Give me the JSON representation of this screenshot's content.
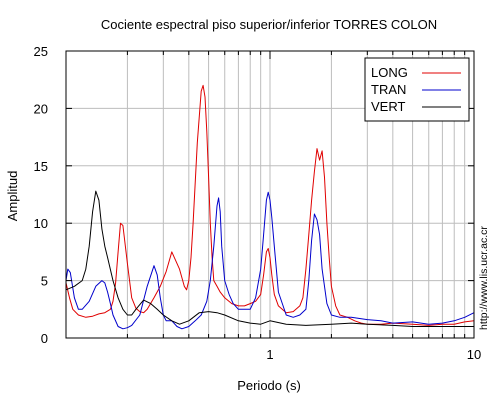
{
  "chart_data": {
    "type": "line",
    "title": "Cociente espectral piso superior/inferior  TORRES COLON",
    "xlabel": "Periodo (s)",
    "ylabel": "Amplitud",
    "x_scale": "log",
    "xlim": [
      0.1,
      10
    ],
    "ylim": [
      0,
      25
    ],
    "x_tick_labels": [
      "1",
      "10"
    ],
    "y_tick_labels": [
      "0",
      "5",
      "10",
      "15",
      "20",
      "25"
    ],
    "y_ticks": [
      0,
      5,
      10,
      15,
      20,
      25
    ],
    "grid": true,
    "legend_position": "top-right",
    "series": [
      {
        "name": "LONG",
        "color": "#e00000",
        "x": [
          0.1,
          0.104,
          0.108,
          0.115,
          0.125,
          0.135,
          0.145,
          0.155,
          0.165,
          0.17,
          0.175,
          0.18,
          0.185,
          0.19,
          0.2,
          0.21,
          0.22,
          0.23,
          0.24,
          0.25,
          0.27,
          0.29,
          0.31,
          0.33,
          0.36,
          0.38,
          0.39,
          0.4,
          0.41,
          0.42,
          0.44,
          0.46,
          0.47,
          0.48,
          0.49,
          0.5,
          0.51,
          0.52,
          0.53,
          0.55,
          0.57,
          0.6,
          0.65,
          0.7,
          0.75,
          0.8,
          0.85,
          0.9,
          0.93,
          0.96,
          0.98,
          1.0,
          1.02,
          1.05,
          1.1,
          1.2,
          1.3,
          1.4,
          1.45,
          1.5,
          1.55,
          1.6,
          1.65,
          1.7,
          1.75,
          1.8,
          1.85,
          1.9,
          1.95,
          2.0,
          2.1,
          2.2,
          2.4,
          2.6,
          2.8,
          3.0,
          3.5,
          4.0,
          5.0,
          6.0,
          7.0,
          8.0,
          9.0,
          10.0
        ],
        "y": [
          4.8,
          3.5,
          2.5,
          2.0,
          1.8,
          1.9,
          2.1,
          2.2,
          2.5,
          3.2,
          4.8,
          7.5,
          10.0,
          9.8,
          6.5,
          3.5,
          2.6,
          2.3,
          2.2,
          2.5,
          3.5,
          4.5,
          5.8,
          7.5,
          6.0,
          4.5,
          4.2,
          5.0,
          7.0,
          10.0,
          17.0,
          21.5,
          22.0,
          21.0,
          18.0,
          14.0,
          10.0,
          7.0,
          5.0,
          4.5,
          4.0,
          3.5,
          3.0,
          2.8,
          2.8,
          3.0,
          3.2,
          3.8,
          5.5,
          7.5,
          7.8,
          7.0,
          5.5,
          3.8,
          2.8,
          2.2,
          2.3,
          2.8,
          3.5,
          6.0,
          9.0,
          12.0,
          14.5,
          16.5,
          15.5,
          16.3,
          14.0,
          10.0,
          7.0,
          4.5,
          2.8,
          2.0,
          1.8,
          1.5,
          1.3,
          1.2,
          1.2,
          1.3,
          1.2,
          1.1,
          1.2,
          1.2,
          1.4,
          1.5
        ]
      },
      {
        "name": "TRAN",
        "color": "#0000cc",
        "x": [
          0.1,
          0.102,
          0.105,
          0.11,
          0.115,
          0.12,
          0.13,
          0.14,
          0.15,
          0.155,
          0.16,
          0.165,
          0.17,
          0.18,
          0.19,
          0.2,
          0.21,
          0.23,
          0.25,
          0.27,
          0.28,
          0.29,
          0.3,
          0.31,
          0.33,
          0.35,
          0.37,
          0.4,
          0.43,
          0.46,
          0.49,
          0.51,
          0.53,
          0.55,
          0.56,
          0.57,
          0.58,
          0.6,
          0.63,
          0.66,
          0.7,
          0.75,
          0.8,
          0.85,
          0.9,
          0.93,
          0.96,
          0.98,
          1.0,
          1.02,
          1.05,
          1.1,
          1.2,
          1.3,
          1.4,
          1.5,
          1.55,
          1.6,
          1.65,
          1.7,
          1.75,
          1.8,
          1.9,
          2.0,
          2.2,
          2.5,
          3.0,
          3.5,
          4.0,
          5.0,
          6.0,
          7.0,
          8.0,
          9.0,
          10.0
        ],
        "y": [
          5.0,
          6.0,
          5.7,
          3.5,
          2.5,
          2.5,
          3.2,
          4.5,
          5.0,
          4.8,
          4.0,
          3.0,
          2.0,
          1.0,
          0.8,
          0.9,
          1.1,
          2.0,
          4.5,
          6.3,
          5.5,
          3.5,
          2.0,
          1.5,
          1.5,
          1.0,
          0.8,
          1.0,
          1.5,
          2.0,
          3.2,
          5.0,
          8.0,
          11.5,
          12.2,
          11.0,
          8.0,
          5.0,
          3.8,
          3.0,
          2.5,
          2.5,
          2.5,
          3.5,
          6.0,
          9.0,
          12.0,
          12.7,
          12.0,
          10.5,
          8.0,
          4.0,
          2.0,
          1.8,
          2.0,
          2.5,
          5.0,
          8.5,
          10.8,
          10.3,
          9.0,
          6.0,
          3.0,
          2.0,
          1.8,
          1.8,
          1.6,
          1.5,
          1.3,
          1.4,
          1.2,
          1.3,
          1.5,
          1.8,
          2.2
        ]
      },
      {
        "name": "VERT",
        "color": "#000000",
        "x": [
          0.1,
          0.11,
          0.12,
          0.125,
          0.13,
          0.135,
          0.14,
          0.145,
          0.15,
          0.155,
          0.16,
          0.17,
          0.18,
          0.19,
          0.2,
          0.21,
          0.22,
          0.24,
          0.26,
          0.28,
          0.3,
          0.33,
          0.36,
          0.4,
          0.45,
          0.5,
          0.55,
          0.6,
          0.7,
          0.8,
          0.9,
          1.0,
          1.2,
          1.5,
          2.0,
          2.5,
          3.0,
          4.0,
          5.0,
          6.0,
          7.0,
          8.0,
          9.0,
          10.0
        ],
        "y": [
          4.2,
          4.5,
          5.0,
          6.0,
          8.0,
          11.0,
          12.8,
          12.0,
          9.5,
          8.0,
          7.0,
          5.0,
          3.5,
          2.5,
          2.0,
          2.0,
          2.5,
          3.3,
          3.0,
          2.5,
          2.0,
          1.5,
          1.2,
          1.5,
          2.2,
          2.3,
          2.2,
          2.0,
          1.5,
          1.3,
          1.2,
          1.5,
          1.2,
          1.1,
          1.2,
          1.3,
          1.2,
          1.1,
          1.0,
          1.0,
          1.0,
          1.0,
          1.0,
          1.0
        ]
      }
    ]
  },
  "watermark": "http://www.lis.ucr.ac.cr"
}
